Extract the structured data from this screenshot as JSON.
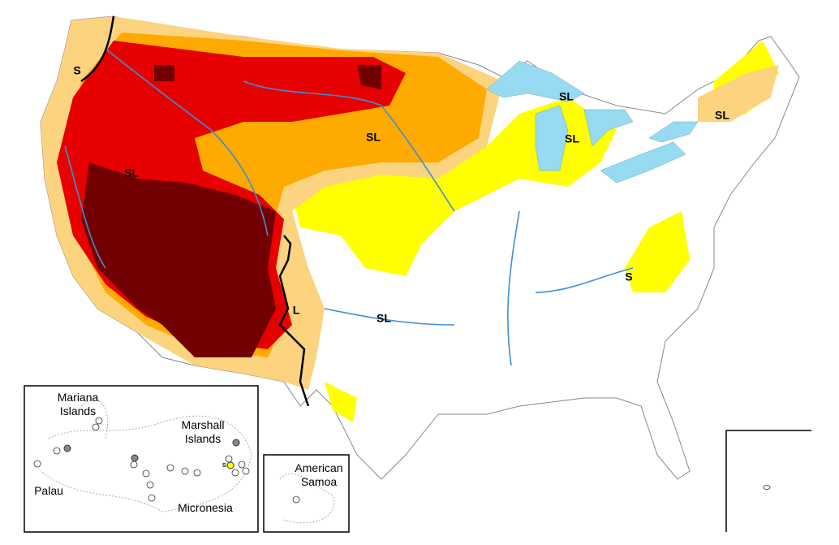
{
  "map_labels": [
    "S",
    "SL",
    "SL",
    "SL",
    "SL",
    "SL",
    "L",
    "SL",
    "S"
  ],
  "pacific_inset": {
    "mariana": [
      "Mariana",
      "Islands"
    ],
    "marshall": [
      "Marshall",
      "Islands"
    ],
    "palau": "Palau",
    "micronesia": "Micronesia",
    "marker_label": "S"
  },
  "samoa_inset": {
    "label": [
      "American",
      "Samoa"
    ]
  }
}
